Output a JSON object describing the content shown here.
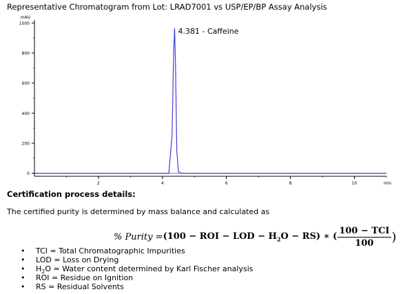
{
  "chart_data": {
    "type": "line",
    "title": "Representative Chromatogram from Lot: LRAD7001 vs USP/EP/BP Assay Analysis",
    "ylabel": "mAU",
    "xlabel": "min",
    "xlim": [
      0,
      11
    ],
    "ylim": [
      -20,
      1020
    ],
    "x_ticks": [
      2,
      4,
      6,
      8,
      10
    ],
    "y_ticks": [
      0,
      200,
      400,
      600,
      800,
      1000
    ],
    "series": [
      {
        "color": "#3f3fd6",
        "x": [
          0,
          4.2,
          4.3,
          4.35,
          4.381,
          4.41,
          4.45,
          4.5,
          4.6,
          11
        ],
        "values": [
          0,
          0,
          250,
          800,
          965,
          700,
          150,
          10,
          0,
          0
        ]
      }
    ],
    "annotations": [
      {
        "x": 4.381,
        "y": 965,
        "text": "4.381 - Caffeine"
      }
    ],
    "baseline_color": "#e040c0",
    "grid": false
  },
  "text": {
    "heading": "Certification process details:",
    "intro": "The certified purity is determined by mass balance and calculated as",
    "formula": {
      "lhs": "% Purity = ",
      "terms": "(100 − ROI − LOD − H",
      "sub2": "2",
      "terms_end": "O − RS) ∗ (",
      "num": "100 − TCI",
      "den": "100",
      "close": ")"
    },
    "definitions": [
      {
        "pre": "TCI = Total Chromatographic Impurities"
      },
      {
        "pre": "LOD = Loss on Drying"
      },
      {
        "pre": "H",
        "sub": "2",
        "post": "O = Water content determined by Karl Fischer analysis"
      },
      {
        "pre": "ROI = Residue on Ignition"
      },
      {
        "pre": "RS = Residual Solvents"
      }
    ]
  }
}
